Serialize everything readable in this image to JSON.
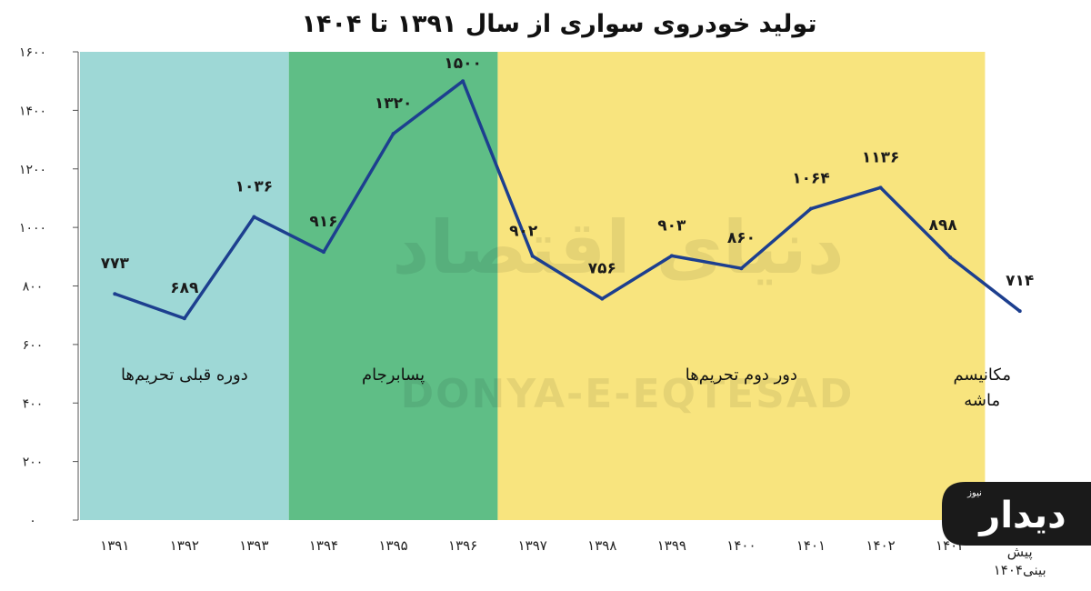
{
  "chart_data": {
    "type": "line",
    "title": "تولید خودروی سواری از سال ۱۳۹۱ تا ۱۴۰۴",
    "xlabel": "",
    "ylabel": "",
    "categories": [
      "۱۳۹۱",
      "۱۳۹۲",
      "۱۳۹۳",
      "۱۳۹۴",
      "۱۳۹۵",
      "۱۳۹۶",
      "۱۳۹۷",
      "۱۳۹۸",
      "۱۳۹۹",
      "۱۴۰۰",
      "۱۴۰۱",
      "۱۴۰۲",
      "۱۴۰۳",
      "پیش بینی۱۴۰۴"
    ],
    "values": [
      773,
      689,
      1036,
      916,
      1320,
      1500,
      902,
      756,
      903,
      860,
      1064,
      1136,
      898,
      714
    ],
    "value_labels": [
      "۷۷۳",
      "۶۸۹",
      "۱۰۳۶",
      "۹۱۶",
      "۱۳۲۰",
      "۱۵۰۰",
      "۹۰۲",
      "۷۵۶",
      "۹۰۳",
      "۸۶۰",
      "۱۰۶۴",
      "۱۱۳۶",
      "۸۹۸",
      "۷۱۴"
    ],
    "ylim": [
      0,
      1600
    ],
    "yticks": [
      0,
      200,
      400,
      600,
      800,
      1000,
      1200,
      1400,
      1600
    ],
    "ytick_labels": [
      "۰",
      "۲۰۰",
      "۴۰۰",
      "۶۰۰",
      "۸۰۰",
      "۱۰۰۰",
      "۱۲۰۰",
      "۱۴۰۰",
      "۱۶۰۰"
    ],
    "grid": false,
    "line_color": "#1d3f8f",
    "periods": [
      {
        "label": "دوره قبلی تحریم‌ها",
        "start_index": 0,
        "end_index": 2,
        "color": "#9ed8d6"
      },
      {
        "label": "پسابرجام",
        "start_index": 3,
        "end_index": 5,
        "color": "#5fbe86"
      },
      {
        "label": "دور دوم تحریم‌ها",
        "start_index": 6,
        "end_index": 12,
        "color": "#f8e47e"
      },
      {
        "label": "مکانیسم ماشه",
        "start_index": 13,
        "end_index": 13,
        "color": "#ee4a47"
      }
    ]
  },
  "watermark": {
    "latin": "DONYA-E-EQTESAD",
    "persian": "دنیای اقتصاد"
  },
  "logo": {
    "text": "دیدار",
    "subtext": "نیوز",
    "color": "#1a1a1a"
  }
}
